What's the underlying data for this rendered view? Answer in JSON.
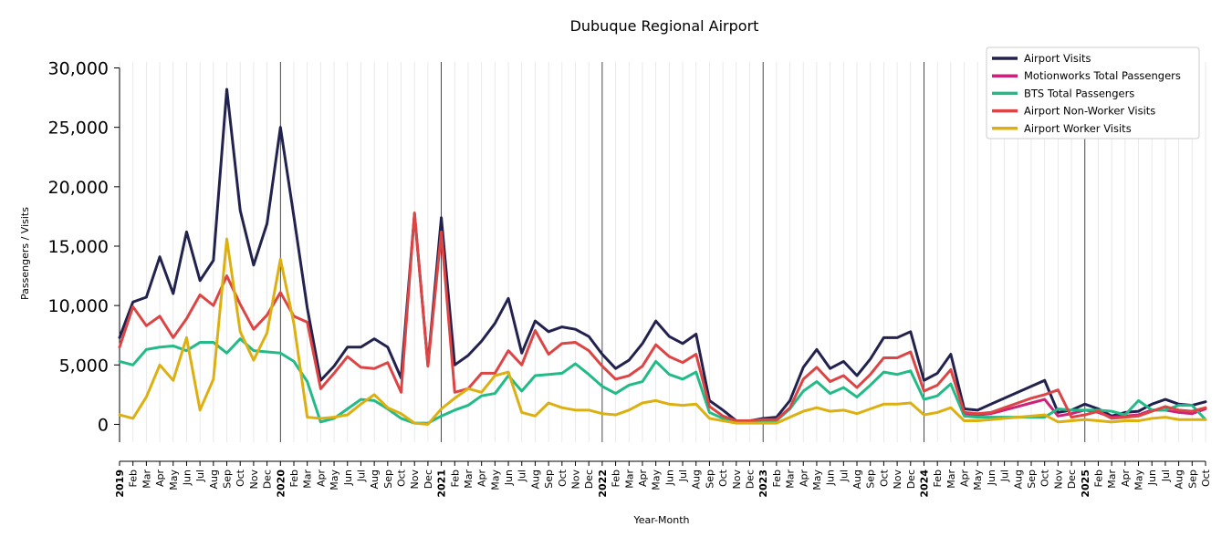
{
  "chart_data": {
    "type": "line",
    "title": "Dubuque Regional Airport",
    "xlabel": "Year-Month",
    "ylabel": "Passengers / Visits",
    "ylim": [
      -1500,
      30500
    ],
    "yticks": [
      0,
      5000,
      10000,
      15000,
      20000,
      25000,
      30000
    ],
    "ytick_labels": [
      "0",
      "5,000",
      "10,000",
      "15,000",
      "20,000",
      "25,000",
      "30,000"
    ],
    "grid": "vertical",
    "legend_position": "top-right",
    "x": [
      "2019",
      "Feb",
      "Mar",
      "Apr",
      "May",
      "Jun",
      "Jul",
      "Aug",
      "Sep",
      "Oct",
      "Nov",
      "Dec",
      "2020",
      "Feb",
      "Mar",
      "Apr",
      "May",
      "Jun",
      "Jul",
      "Aug",
      "Sep",
      "Oct",
      "Nov",
      "Dec",
      "2021",
      "Feb",
      "Mar",
      "Apr",
      "May",
      "Jun",
      "Jul",
      "Aug",
      "Sep",
      "Oct",
      "Nov",
      "Dec",
      "2022",
      "Feb",
      "Mar",
      "Apr",
      "May",
      "Jun",
      "Jul",
      "Aug",
      "Sep",
      "Oct",
      "Nov",
      "Dec",
      "2023",
      "Feb",
      "Mar",
      "Apr",
      "May",
      "Jun",
      "Jul",
      "Aug",
      "Sep",
      "Oct",
      "Nov",
      "Dec",
      "2024",
      "Feb",
      "Mar",
      "Apr",
      "May",
      "Jun",
      "Jul",
      "Aug",
      "Sep",
      "Oct",
      "Nov",
      "Dec",
      "2025",
      "Feb",
      "Mar",
      "Apr",
      "May",
      "Jun",
      "Jul",
      "Aug",
      "Sep",
      "Oct"
    ],
    "year_indices": [
      0,
      12,
      24,
      36,
      48,
      60,
      72
    ],
    "series": [
      {
        "name": "Airport Visits",
        "color": "#22224f",
        "values": [
          7300,
          10300,
          10700,
          14100,
          11000,
          16200,
          12100,
          13800,
          28200,
          18000,
          13400,
          16900,
          25000,
          17500,
          9800,
          3700,
          4900,
          6500,
          6500,
          7200,
          6500,
          3900,
          17700,
          5000,
          17400,
          5000,
          5800,
          7000,
          8500,
          10600,
          6000,
          8700,
          7800,
          8200,
          8000,
          7400,
          5900,
          4700,
          5400,
          6800,
          8700,
          7400,
          6800,
          7600,
          2000,
          1200,
          300,
          300,
          500,
          600,
          2000,
          4800,
          6300,
          4700,
          5300,
          4100,
          5500,
          7300,
          7300,
          7800,
          3700,
          4300,
          5900,
          1300,
          1200,
          1700,
          2200,
          2700,
          3200,
          3700,
          1000,
          1200,
          1700,
          1300,
          700,
          1000,
          1100,
          1700,
          2100,
          1700,
          1600,
          1900
        ]
      },
      {
        "name": "Motionworks Total Passengers",
        "color": "#cc2277",
        "values": [
          null,
          null,
          null,
          null,
          null,
          null,
          null,
          null,
          null,
          null,
          null,
          null,
          null,
          null,
          null,
          null,
          null,
          null,
          null,
          null,
          null,
          null,
          null,
          null,
          null,
          null,
          null,
          null,
          null,
          null,
          null,
          null,
          null,
          null,
          null,
          null,
          null,
          null,
          null,
          null,
          null,
          null,
          null,
          null,
          null,
          null,
          null,
          null,
          null,
          null,
          null,
          null,
          null,
          null,
          null,
          null,
          null,
          null,
          null,
          null,
          null,
          null,
          null,
          800,
          800,
          900,
          1200,
          1500,
          1800,
          2100,
          700,
          900,
          1200,
          1000,
          600,
          700,
          800,
          1200,
          1200,
          1000,
          900,
          1300
        ]
      },
      {
        "name": "BTS Total Passengers",
        "color": "#22bb88",
        "values": [
          5300,
          5000,
          6300,
          6500,
          6600,
          6200,
          6900,
          6900,
          6000,
          7200,
          6200,
          6100,
          6000,
          5300,
          3600,
          200,
          500,
          1300,
          2100,
          2000,
          1300,
          500,
          100,
          100,
          700,
          1200,
          1600,
          2400,
          2600,
          4100,
          2800,
          4100,
          4200,
          4300,
          5100,
          4200,
          3200,
          2600,
          3300,
          3600,
          5300,
          4200,
          3800,
          4400,
          1000,
          500,
          200,
          200,
          300,
          300,
          1300,
          2800,
          3600,
          2600,
          3100,
          2300,
          3300,
          4400,
          4200,
          4500,
          2100,
          2400,
          3400,
          700,
          600,
          600,
          600,
          600,
          600,
          600,
          1300,
          1200,
          1200,
          1200,
          1100,
          800,
          2000,
          1200,
          1200,
          1600,
          1600,
          400
        ]
      },
      {
        "name": "Airport Non-Worker Visits",
        "color": "#dd4444",
        "values": [
          6500,
          9900,
          8300,
          9100,
          7300,
          8900,
          10900,
          10000,
          12500,
          10100,
          8000,
          9200,
          11100,
          9100,
          8600,
          3000,
          4300,
          5700,
          4800,
          4700,
          5200,
          2700,
          17800,
          4900,
          16200,
          2700,
          3000,
          4300,
          4300,
          6200,
          5000,
          7900,
          5900,
          6800,
          6900,
          6200,
          4900,
          3800,
          4100,
          4900,
          6700,
          5700,
          5200,
          5900,
          1500,
          700,
          300,
          300,
          400,
          400,
          1400,
          3800,
          4800,
          3600,
          4100,
          3100,
          4200,
          5600,
          5600,
          6100,
          2800,
          3300,
          4600,
          1000,
          900,
          1000,
          1400,
          1800,
          2200,
          2500,
          2900,
          600,
          800,
          1100,
          500,
          600,
          700,
          1100,
          1500,
          1200,
          1100,
          1400
        ]
      },
      {
        "name": "Airport Worker Visits",
        "color": "#ddb011",
        "values": [
          800,
          500,
          2300,
          5000,
          3700,
          7300,
          1200,
          3800,
          15600,
          7800,
          5400,
          7700,
          13900,
          8500,
          600,
          500,
          600,
          800,
          1700,
          2500,
          1400,
          900,
          100,
          0,
          1300,
          2200,
          3000,
          2700,
          4100,
          4400,
          1000,
          700,
          1800,
          1400,
          1200,
          1200,
          900,
          800,
          1200,
          1800,
          2000,
          1700,
          1600,
          1700,
          500,
          300,
          100,
          100,
          100,
          100,
          600,
          1100,
          1400,
          1100,
          1200,
          900,
          1300,
          1700,
          1700,
          1800,
          800,
          1000,
          1400,
          300,
          300,
          400,
          500,
          600,
          700,
          800,
          200,
          300,
          400,
          300,
          200,
          300,
          300,
          500,
          600,
          400,
          400,
          400
        ]
      }
    ]
  }
}
